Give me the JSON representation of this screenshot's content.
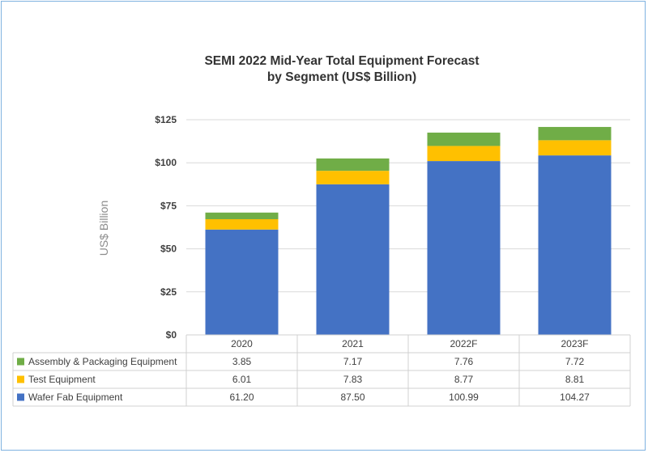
{
  "chart_data": {
    "type": "bar",
    "stacked": true,
    "title": "SEMI 2022 Mid-Year Total Equipment Forecast",
    "subtitle": "by Segment (US$ Billion)",
    "ylabel": "US$ Billion",
    "ylim": [
      0,
      125
    ],
    "yticks": [
      "$0",
      "$25",
      "$50",
      "$75",
      "$100",
      "$125"
    ],
    "categories": [
      "2020",
      "2021",
      "2022F",
      "2023F"
    ],
    "grid": true,
    "legend": "data-table",
    "series": [
      {
        "name": "Wafer Fab Equipment",
        "color": "#4472c4",
        "values": [
          61.2,
          87.5,
          100.99,
          104.27
        ],
        "labels": [
          "61.20",
          "87.50",
          "100.99",
          "104.27"
        ]
      },
      {
        "name": "Test Equipment",
        "color": "#ffc000",
        "values": [
          6.01,
          7.83,
          8.77,
          8.81
        ],
        "labels": [
          "6.01",
          "7.83",
          "8.77",
          "8.81"
        ]
      },
      {
        "name": "Assembly & Packaging Equipment",
        "color": "#70ad47",
        "values": [
          3.85,
          7.17,
          7.76,
          7.72
        ],
        "labels": [
          "3.85",
          "7.17",
          "7.76",
          "7.72"
        ]
      }
    ],
    "table_order": [
      2,
      1,
      0
    ]
  }
}
